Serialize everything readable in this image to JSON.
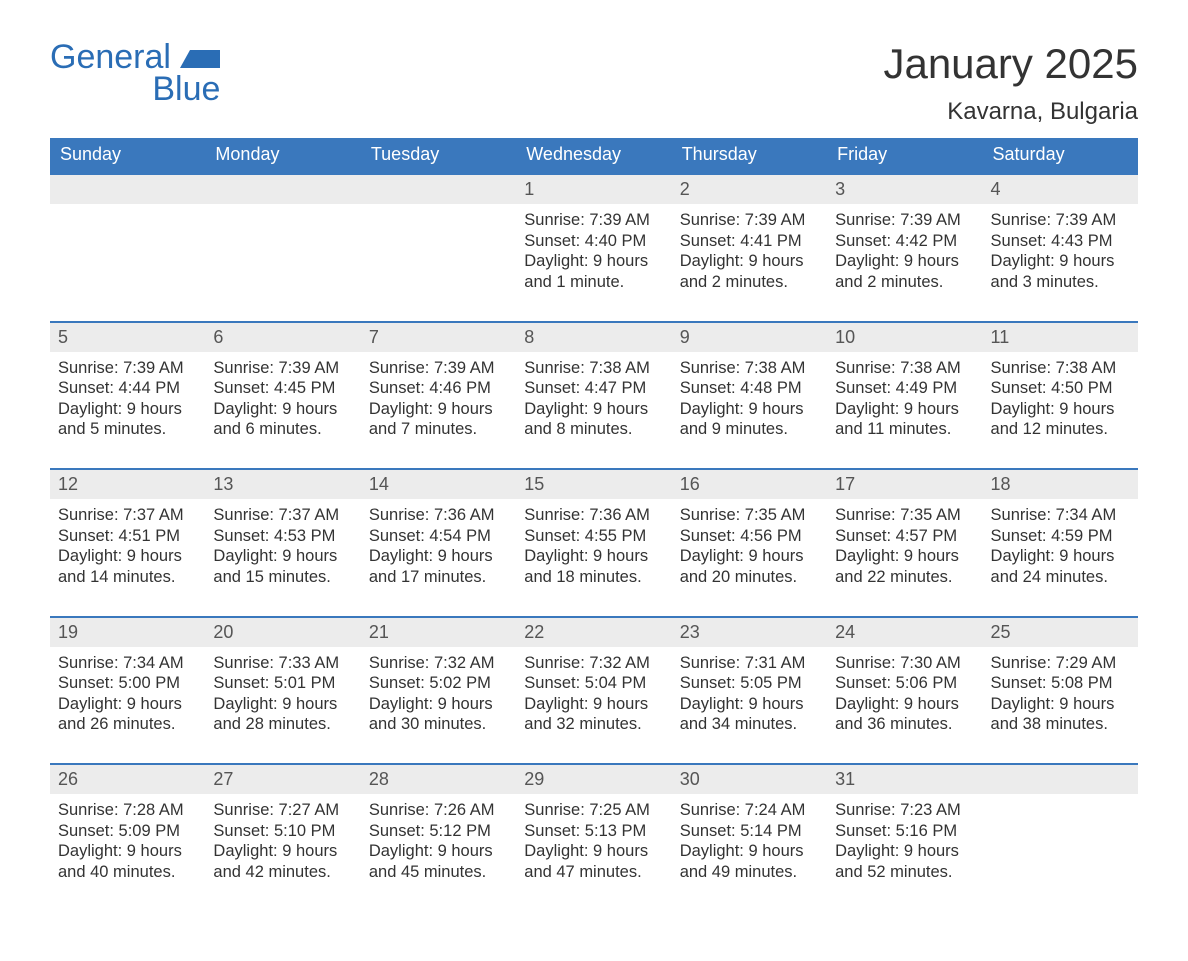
{
  "branding": {
    "logo_line1": "General",
    "logo_line2": "Blue",
    "logo_color": "#2a6db5"
  },
  "header": {
    "month_title": "January 2025",
    "location": "Kavarna, Bulgaria"
  },
  "colors": {
    "header_bg": "#3a78bd",
    "header_text": "#ffffff",
    "daynum_bg": "#ececec",
    "text": "#333333",
    "rule": "#3a78bd",
    "page_bg": "#ffffff"
  },
  "weekdays": [
    "Sunday",
    "Monday",
    "Tuesday",
    "Wednesday",
    "Thursday",
    "Friday",
    "Saturday"
  ],
  "weeks": [
    [
      null,
      null,
      null,
      {
        "day": "1",
        "sunrise": "Sunrise: 7:39 AM",
        "sunset": "Sunset: 4:40 PM",
        "daylight1": "Daylight: 9 hours",
        "daylight2": "and 1 minute."
      },
      {
        "day": "2",
        "sunrise": "Sunrise: 7:39 AM",
        "sunset": "Sunset: 4:41 PM",
        "daylight1": "Daylight: 9 hours",
        "daylight2": "and 2 minutes."
      },
      {
        "day": "3",
        "sunrise": "Sunrise: 7:39 AM",
        "sunset": "Sunset: 4:42 PM",
        "daylight1": "Daylight: 9 hours",
        "daylight2": "and 2 minutes."
      },
      {
        "day": "4",
        "sunrise": "Sunrise: 7:39 AM",
        "sunset": "Sunset: 4:43 PM",
        "daylight1": "Daylight: 9 hours",
        "daylight2": "and 3 minutes."
      }
    ],
    [
      {
        "day": "5",
        "sunrise": "Sunrise: 7:39 AM",
        "sunset": "Sunset: 4:44 PM",
        "daylight1": "Daylight: 9 hours",
        "daylight2": "and 5 minutes."
      },
      {
        "day": "6",
        "sunrise": "Sunrise: 7:39 AM",
        "sunset": "Sunset: 4:45 PM",
        "daylight1": "Daylight: 9 hours",
        "daylight2": "and 6 minutes."
      },
      {
        "day": "7",
        "sunrise": "Sunrise: 7:39 AM",
        "sunset": "Sunset: 4:46 PM",
        "daylight1": "Daylight: 9 hours",
        "daylight2": "and 7 minutes."
      },
      {
        "day": "8",
        "sunrise": "Sunrise: 7:38 AM",
        "sunset": "Sunset: 4:47 PM",
        "daylight1": "Daylight: 9 hours",
        "daylight2": "and 8 minutes."
      },
      {
        "day": "9",
        "sunrise": "Sunrise: 7:38 AM",
        "sunset": "Sunset: 4:48 PM",
        "daylight1": "Daylight: 9 hours",
        "daylight2": "and 9 minutes."
      },
      {
        "day": "10",
        "sunrise": "Sunrise: 7:38 AM",
        "sunset": "Sunset: 4:49 PM",
        "daylight1": "Daylight: 9 hours",
        "daylight2": "and 11 minutes."
      },
      {
        "day": "11",
        "sunrise": "Sunrise: 7:38 AM",
        "sunset": "Sunset: 4:50 PM",
        "daylight1": "Daylight: 9 hours",
        "daylight2": "and 12 minutes."
      }
    ],
    [
      {
        "day": "12",
        "sunrise": "Sunrise: 7:37 AM",
        "sunset": "Sunset: 4:51 PM",
        "daylight1": "Daylight: 9 hours",
        "daylight2": "and 14 minutes."
      },
      {
        "day": "13",
        "sunrise": "Sunrise: 7:37 AM",
        "sunset": "Sunset: 4:53 PM",
        "daylight1": "Daylight: 9 hours",
        "daylight2": "and 15 minutes."
      },
      {
        "day": "14",
        "sunrise": "Sunrise: 7:36 AM",
        "sunset": "Sunset: 4:54 PM",
        "daylight1": "Daylight: 9 hours",
        "daylight2": "and 17 minutes."
      },
      {
        "day": "15",
        "sunrise": "Sunrise: 7:36 AM",
        "sunset": "Sunset: 4:55 PM",
        "daylight1": "Daylight: 9 hours",
        "daylight2": "and 18 minutes."
      },
      {
        "day": "16",
        "sunrise": "Sunrise: 7:35 AM",
        "sunset": "Sunset: 4:56 PM",
        "daylight1": "Daylight: 9 hours",
        "daylight2": "and 20 minutes."
      },
      {
        "day": "17",
        "sunrise": "Sunrise: 7:35 AM",
        "sunset": "Sunset: 4:57 PM",
        "daylight1": "Daylight: 9 hours",
        "daylight2": "and 22 minutes."
      },
      {
        "day": "18",
        "sunrise": "Sunrise: 7:34 AM",
        "sunset": "Sunset: 4:59 PM",
        "daylight1": "Daylight: 9 hours",
        "daylight2": "and 24 minutes."
      }
    ],
    [
      {
        "day": "19",
        "sunrise": "Sunrise: 7:34 AM",
        "sunset": "Sunset: 5:00 PM",
        "daylight1": "Daylight: 9 hours",
        "daylight2": "and 26 minutes."
      },
      {
        "day": "20",
        "sunrise": "Sunrise: 7:33 AM",
        "sunset": "Sunset: 5:01 PM",
        "daylight1": "Daylight: 9 hours",
        "daylight2": "and 28 minutes."
      },
      {
        "day": "21",
        "sunrise": "Sunrise: 7:32 AM",
        "sunset": "Sunset: 5:02 PM",
        "daylight1": "Daylight: 9 hours",
        "daylight2": "and 30 minutes."
      },
      {
        "day": "22",
        "sunrise": "Sunrise: 7:32 AM",
        "sunset": "Sunset: 5:04 PM",
        "daylight1": "Daylight: 9 hours",
        "daylight2": "and 32 minutes."
      },
      {
        "day": "23",
        "sunrise": "Sunrise: 7:31 AM",
        "sunset": "Sunset: 5:05 PM",
        "daylight1": "Daylight: 9 hours",
        "daylight2": "and 34 minutes."
      },
      {
        "day": "24",
        "sunrise": "Sunrise: 7:30 AM",
        "sunset": "Sunset: 5:06 PM",
        "daylight1": "Daylight: 9 hours",
        "daylight2": "and 36 minutes."
      },
      {
        "day": "25",
        "sunrise": "Sunrise: 7:29 AM",
        "sunset": "Sunset: 5:08 PM",
        "daylight1": "Daylight: 9 hours",
        "daylight2": "and 38 minutes."
      }
    ],
    [
      {
        "day": "26",
        "sunrise": "Sunrise: 7:28 AM",
        "sunset": "Sunset: 5:09 PM",
        "daylight1": "Daylight: 9 hours",
        "daylight2": "and 40 minutes."
      },
      {
        "day": "27",
        "sunrise": "Sunrise: 7:27 AM",
        "sunset": "Sunset: 5:10 PM",
        "daylight1": "Daylight: 9 hours",
        "daylight2": "and 42 minutes."
      },
      {
        "day": "28",
        "sunrise": "Sunrise: 7:26 AM",
        "sunset": "Sunset: 5:12 PM",
        "daylight1": "Daylight: 9 hours",
        "daylight2": "and 45 minutes."
      },
      {
        "day": "29",
        "sunrise": "Sunrise: 7:25 AM",
        "sunset": "Sunset: 5:13 PM",
        "daylight1": "Daylight: 9 hours",
        "daylight2": "and 47 minutes."
      },
      {
        "day": "30",
        "sunrise": "Sunrise: 7:24 AM",
        "sunset": "Sunset: 5:14 PM",
        "daylight1": "Daylight: 9 hours",
        "daylight2": "and 49 minutes."
      },
      {
        "day": "31",
        "sunrise": "Sunrise: 7:23 AM",
        "sunset": "Sunset: 5:16 PM",
        "daylight1": "Daylight: 9 hours",
        "daylight2": "and 52 minutes."
      },
      null
    ]
  ]
}
